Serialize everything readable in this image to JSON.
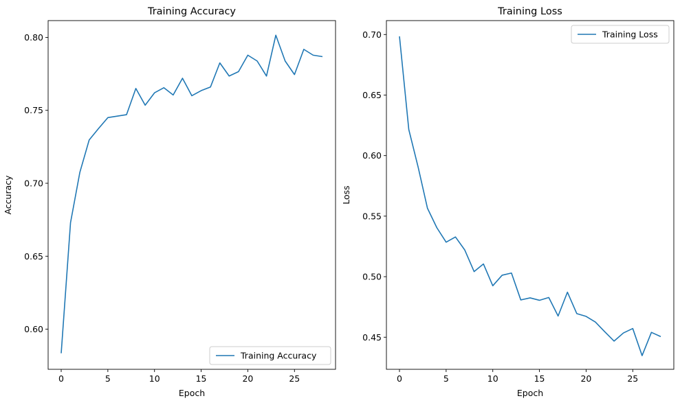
{
  "chart_data": [
    {
      "type": "line",
      "title": "Training Accuracy",
      "xlabel": "Epoch",
      "ylabel": "Accuracy",
      "xlim": [
        -1.4,
        29.4
      ],
      "ylim": [
        0.5725,
        0.8115
      ],
      "xticks": [
        0,
        5,
        10,
        15,
        20,
        25
      ],
      "yticks": [
        0.6,
        0.65,
        0.7,
        0.75,
        0.8
      ],
      "xtick_labels": [
        "0",
        "5",
        "10",
        "15",
        "20",
        "25"
      ],
      "ytick_labels": [
        "0.60",
        "0.65",
        "0.70",
        "0.75",
        "0.80"
      ],
      "grid": false,
      "legend": "lower-right",
      "series": [
        {
          "name": "Training Accuracy",
          "color": "#1f77b4",
          "x": [
            0,
            1,
            2,
            3,
            4,
            5,
            6,
            7,
            8,
            9,
            10,
            11,
            12,
            13,
            14,
            15,
            16,
            17,
            18,
            19,
            20,
            21,
            22,
            23,
            24,
            25,
            26,
            27,
            28
          ],
          "y": [
            0.5835,
            0.673,
            0.7075,
            0.7297,
            0.7375,
            0.745,
            0.746,
            0.747,
            0.765,
            0.7535,
            0.762,
            0.7655,
            0.7605,
            0.772,
            0.76,
            0.7635,
            0.766,
            0.7825,
            0.7735,
            0.7765,
            0.7878,
            0.7838,
            0.7735,
            0.8015,
            0.7838,
            0.7745,
            0.7918,
            0.7878,
            0.7868
          ]
        }
      ]
    },
    {
      "type": "line",
      "title": "Training Loss",
      "xlabel": "Epoch",
      "ylabel": "Loss",
      "xlim": [
        -1.4,
        29.4
      ],
      "ylim": [
        0.4235,
        0.7115
      ],
      "xticks": [
        0,
        5,
        10,
        15,
        20,
        25
      ],
      "yticks": [
        0.45,
        0.5,
        0.55,
        0.6,
        0.65,
        0.7
      ],
      "xtick_labels": [
        "0",
        "5",
        "10",
        "15",
        "20",
        "25"
      ],
      "ytick_labels": [
        "0.45",
        "0.50",
        "0.55",
        "0.60",
        "0.65",
        "0.70"
      ],
      "grid": false,
      "legend": "upper-right",
      "series": [
        {
          "name": "Training Loss",
          "color": "#1f77b4",
          "x": [
            0,
            1,
            2,
            3,
            4,
            5,
            6,
            7,
            8,
            9,
            10,
            11,
            12,
            13,
            14,
            15,
            16,
            17,
            18,
            19,
            20,
            21,
            22,
            23,
            24,
            25,
            26,
            27,
            28
          ],
          "y": [
            0.6985,
            0.6215,
            0.5905,
            0.5565,
            0.5405,
            0.5285,
            0.5328,
            0.522,
            0.5042,
            0.5105,
            0.4925,
            0.5012,
            0.503,
            0.4808,
            0.4825,
            0.4805,
            0.4828,
            0.4675,
            0.4872,
            0.4695,
            0.4672,
            0.4625,
            0.4545,
            0.4468,
            0.4535,
            0.4572,
            0.4348,
            0.454,
            0.4505
          ]
        }
      ]
    }
  ]
}
